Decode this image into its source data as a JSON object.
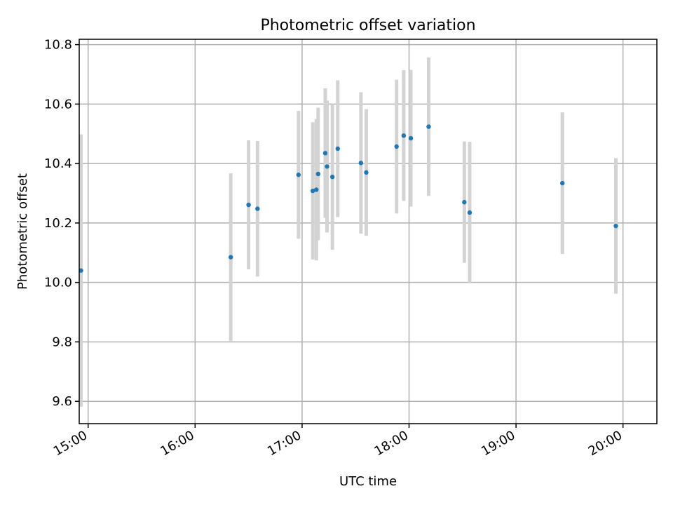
{
  "chart_data": {
    "type": "scatter",
    "title": "Photometric offset variation",
    "xlabel": "UTC time",
    "ylabel": "Photometric offset",
    "x_ticks": [
      "15:00",
      "16:00",
      "17:00",
      "18:00",
      "19:00",
      "20:00"
    ],
    "y_ticks": [
      "9.6",
      "9.8",
      "10.0",
      "10.2",
      "10.4",
      "10.6",
      "10.8"
    ],
    "xlim": [
      "14:55",
      "20:19"
    ],
    "ylim": [
      9.525,
      10.818
    ],
    "grid": true,
    "colors": {
      "point": "#1f77b4",
      "errorbar": "#d3d3d3"
    },
    "points": [
      {
        "x": "14:56",
        "y": 10.04,
        "yerr": 0.458
      },
      {
        "x": "16:20",
        "y": 10.085,
        "yerr": 0.282
      },
      {
        "x": "16:30",
        "y": 10.261,
        "yerr": 0.217
      },
      {
        "x": "16:35",
        "y": 10.248,
        "yerr": 0.228
      },
      {
        "x": "16:58",
        "y": 10.362,
        "yerr": 0.215
      },
      {
        "x": "17:06",
        "y": 10.308,
        "yerr": 0.231
      },
      {
        "x": "17:08",
        "y": 10.312,
        "yerr": 0.238
      },
      {
        "x": "17:09",
        "y": 10.365,
        "yerr": 0.223
      },
      {
        "x": "17:13",
        "y": 10.435,
        "yerr": 0.218
      },
      {
        "x": "17:14",
        "y": 10.39,
        "yerr": 0.222
      },
      {
        "x": "17:17",
        "y": 10.355,
        "yerr": 0.245
      },
      {
        "x": "17:20",
        "y": 10.45,
        "yerr": 0.23
      },
      {
        "x": "17:33",
        "y": 10.402,
        "yerr": 0.238
      },
      {
        "x": "17:36",
        "y": 10.37,
        "yerr": 0.213
      },
      {
        "x": "17:53",
        "y": 10.457,
        "yerr": 0.225
      },
      {
        "x": "17:57",
        "y": 10.494,
        "yerr": 0.22
      },
      {
        "x": "18:01",
        "y": 10.485,
        "yerr": 0.23
      },
      {
        "x": "18:11",
        "y": 10.524,
        "yerr": 0.233
      },
      {
        "x": "18:31",
        "y": 10.27,
        "yerr": 0.204
      },
      {
        "x": "18:34",
        "y": 10.235,
        "yerr": 0.238
      },
      {
        "x": "19:26",
        "y": 10.334,
        "yerr": 0.238
      },
      {
        "x": "19:56",
        "y": 10.19,
        "yerr": 0.228
      }
    ]
  }
}
